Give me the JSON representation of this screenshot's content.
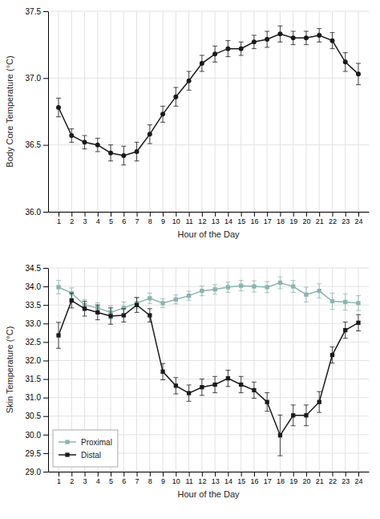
{
  "chart_data": [
    {
      "type": "line",
      "x_label": "Hour of the Day",
      "y_label": "Body Core Temperature (°C)",
      "x": [
        1,
        2,
        3,
        4,
        5,
        6,
        7,
        8,
        9,
        10,
        11,
        12,
        13,
        14,
        15,
        16,
        17,
        18,
        19,
        20,
        21,
        22,
        23,
        24
      ],
      "xlim": [
        0.2,
        24.8
      ],
      "xticks": [
        1,
        2,
        3,
        4,
        5,
        6,
        7,
        8,
        9,
        10,
        11,
        12,
        13,
        14,
        15,
        16,
        17,
        18,
        19,
        20,
        21,
        22,
        23,
        24
      ],
      "ylim": [
        36.0,
        37.5
      ],
      "yticks": [
        {
          "value": 36.0,
          "label": "36.0"
        },
        36.5,
        {
          "value": 37.0,
          "label": "37.0"
        },
        37.5
      ],
      "grid": true,
      "series": [
        {
          "color": "#1a1a1a",
          "marker": "circle",
          "values": [
            36.78,
            36.57,
            36.52,
            36.5,
            36.44,
            36.42,
            36.45,
            36.58,
            36.73,
            36.86,
            36.98,
            37.11,
            37.18,
            37.22,
            37.22,
            37.27,
            37.29,
            37.33,
            37.3,
            37.3,
            37.32,
            37.28,
            37.12,
            37.03
          ],
          "errors": [
            0.07,
            0.05,
            0.05,
            0.05,
            0.06,
            0.07,
            0.07,
            0.07,
            0.06,
            0.07,
            0.07,
            0.06,
            0.06,
            0.06,
            0.05,
            0.05,
            0.06,
            0.06,
            0.05,
            0.05,
            0.05,
            0.06,
            0.07,
            0.08
          ]
        }
      ]
    },
    {
      "type": "line",
      "x_label": "Hour of the Day",
      "y_label": "Skin Temperature (°C)",
      "x": [
        1,
        2,
        3,
        4,
        5,
        6,
        7,
        8,
        9,
        10,
        11,
        12,
        13,
        14,
        15,
        16,
        17,
        18,
        19,
        20,
        21,
        22,
        23,
        24
      ],
      "xlim": [
        0.2,
        24.8
      ],
      "xticks": [
        1,
        2,
        3,
        4,
        5,
        6,
        7,
        8,
        9,
        10,
        11,
        12,
        13,
        14,
        15,
        16,
        17,
        18,
        19,
        20,
        21,
        22,
        23,
        24
      ],
      "ylim": [
        29.0,
        34.5
      ],
      "yticks": [
        {
          "value": 29.0,
          "label": "29.0"
        },
        29.5,
        {
          "value": 30.0,
          "label": "30.0"
        },
        30.5,
        {
          "value": 31.0,
          "label": "31.0"
        },
        31.5,
        {
          "value": 32.0,
          "label": "32.0"
        },
        32.5,
        {
          "value": 33.0,
          "label": "33.0"
        },
        33.5,
        {
          "value": 34.0,
          "label": "34.0"
        },
        34.5
      ],
      "grid": true,
      "legend": "lower left",
      "series": [
        {
          "name": "Proximal",
          "color": "#8ab4b0",
          "marker": "square",
          "values": [
            33.98,
            33.82,
            33.5,
            33.42,
            33.3,
            33.42,
            33.55,
            33.68,
            33.55,
            33.65,
            33.75,
            33.88,
            33.92,
            33.98,
            34.02,
            34.0,
            33.98,
            34.1,
            34.0,
            33.78,
            33.88,
            33.6,
            33.58,
            33.55
          ],
          "errors": [
            0.18,
            0.14,
            0.15,
            0.14,
            0.18,
            0.16,
            0.15,
            0.14,
            0.12,
            0.12,
            0.12,
            0.13,
            0.13,
            0.14,
            0.14,
            0.15,
            0.15,
            0.16,
            0.16,
            0.2,
            0.19,
            0.22,
            0.22,
            0.2
          ]
        },
        {
          "name": "Distal",
          "color": "#1a1a1a",
          "marker": "square",
          "values": [
            32.68,
            33.62,
            33.4,
            33.3,
            33.2,
            33.22,
            33.5,
            33.22,
            31.7,
            31.32,
            31.12,
            31.28,
            31.35,
            31.52,
            31.35,
            31.2,
            30.88,
            29.98,
            30.52,
            30.52,
            30.88,
            32.15,
            32.82,
            33.02
          ],
          "errors": [
            0.35,
            0.2,
            0.2,
            0.2,
            0.22,
            0.18,
            0.2,
            0.18,
            0.22,
            0.22,
            0.22,
            0.22,
            0.22,
            0.22,
            0.22,
            0.22,
            0.25,
            0.55,
            0.28,
            0.28,
            0.28,
            0.22,
            0.22,
            0.22
          ]
        }
      ]
    }
  ]
}
